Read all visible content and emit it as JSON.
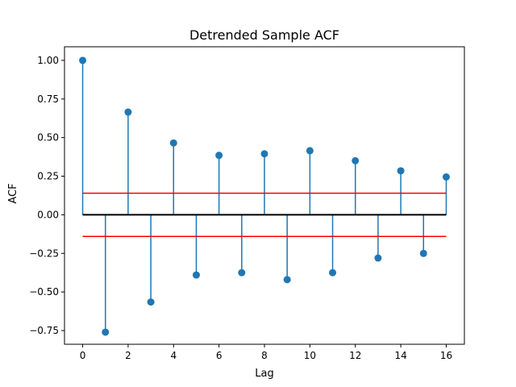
{
  "chart_data": {
    "type": "stem",
    "title": "Detrended Sample ACF",
    "xlabel": "Lag",
    "ylabel": "ACF",
    "xlim": [
      -0.8,
      16.8
    ],
    "ylim": [
      -0.8386,
      1.0882
    ],
    "xticks": [
      0,
      2,
      4,
      6,
      8,
      10,
      12,
      14,
      16
    ],
    "xtick_labels": [
      "0",
      "2",
      "4",
      "6",
      "8",
      "10",
      "12",
      "14",
      "16"
    ],
    "yticks": [
      -0.75,
      -0.5,
      -0.25,
      0.0,
      0.25,
      0.5,
      0.75,
      1.0
    ],
    "ytick_labels": [
      "−0.75",
      "−0.50",
      "−0.25",
      "0.00",
      "0.25",
      "0.50",
      "0.75",
      "1.00"
    ],
    "grid": false,
    "series": [
      {
        "lags": [
          0,
          1,
          2,
          3,
          4,
          5,
          6,
          7,
          8,
          9,
          10,
          11,
          12,
          13,
          14,
          15,
          16
        ],
        "values": [
          1.0,
          -0.76,
          0.665,
          -0.565,
          0.465,
          -0.39,
          0.385,
          -0.375,
          0.395,
          -0.42,
          0.415,
          -0.375,
          0.35,
          -0.28,
          0.285,
          -0.25,
          0.245
        ],
        "color": "#1f77b4"
      }
    ],
    "baseline": {
      "y": 0,
      "x_range": [
        0,
        16
      ],
      "color": "#000000"
    },
    "confidence_bounds": {
      "upper": 0.14,
      "lower": -0.14,
      "x_range": [
        0,
        16
      ],
      "color": "#ff0000"
    }
  }
}
